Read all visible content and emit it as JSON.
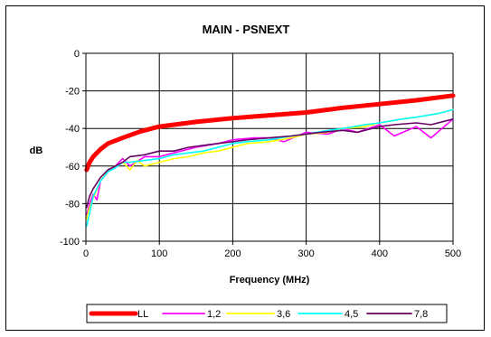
{
  "chart_data": {
    "type": "line",
    "title": "MAIN - PSNEXT",
    "xlabel": "Frequency (MHz)",
    "ylabel": "dB",
    "xlim": [
      0,
      500
    ],
    "ylim": [
      -100,
      0
    ],
    "xticks": [
      0,
      100,
      200,
      300,
      400,
      500
    ],
    "yticks": [
      0,
      -20,
      -40,
      -60,
      -80,
      -100
    ],
    "grid": "on",
    "legend_position": "bottom",
    "series": [
      {
        "name": "LL",
        "color": "#ff0000",
        "x": [
          1,
          5,
          10,
          20,
          30,
          50,
          75,
          100,
          150,
          200,
          250,
          300,
          350,
          400,
          450,
          500
        ],
        "y": [
          -62,
          -58,
          -55,
          -51,
          -48,
          -45,
          -41.5,
          -39,
          -36.5,
          -34.5,
          -33,
          -31.5,
          -29,
          -27,
          -25,
          -22.5
        ]
      },
      {
        "name": "1,2",
        "color": "#ff00ff",
        "x": [
          1,
          5,
          10,
          15,
          20,
          30,
          40,
          50,
          60,
          80,
          100,
          120,
          150,
          180,
          200,
          230,
          250,
          270,
          300,
          330,
          350,
          370,
          400,
          420,
          450,
          470,
          500
        ],
        "y": [
          -86,
          -80,
          -75,
          -78,
          -68,
          -63,
          -60,
          -56,
          -60,
          -55,
          -55,
          -53,
          -50,
          -48,
          -46,
          -45,
          -45,
          -47,
          -42,
          -43,
          -40,
          -42,
          -38,
          -44,
          -39,
          -45,
          -35
        ]
      },
      {
        "name": "3,6",
        "color": "#ffff00",
        "x": [
          1,
          5,
          10,
          20,
          30,
          40,
          50,
          60,
          70,
          80,
          100,
          120,
          140,
          160,
          180,
          200,
          220,
          250,
          280,
          300,
          330,
          350,
          380,
          400,
          430,
          450,
          480,
          500
        ],
        "y": [
          -88,
          -82,
          -77,
          -68,
          -62,
          -60,
          -58,
          -62,
          -57,
          -60,
          -58,
          -56,
          -55,
          -53,
          -52,
          -50,
          -48,
          -47,
          -45,
          -43,
          -42,
          -40,
          -39,
          -37,
          -35,
          -34,
          -32,
          -30
        ]
      },
      {
        "name": "4,5",
        "color": "#00ffff",
        "x": [
          1,
          5,
          10,
          20,
          30,
          40,
          50,
          60,
          80,
          100,
          120,
          140,
          160,
          180,
          200,
          220,
          250,
          280,
          300,
          330,
          350,
          380,
          400,
          430,
          450,
          480,
          500
        ],
        "y": [
          -92,
          -85,
          -76,
          -68,
          -63,
          -61,
          -58,
          -58,
          -57,
          -56,
          -54,
          -53,
          -52,
          -50,
          -48,
          -47,
          -46,
          -44,
          -43,
          -41,
          -40,
          -38,
          -37,
          -35,
          -34,
          -32,
          -30
        ]
      },
      {
        "name": "7,8",
        "color": "#660066",
        "x": [
          1,
          5,
          10,
          20,
          30,
          40,
          50,
          60,
          80,
          100,
          120,
          140,
          160,
          180,
          200,
          220,
          250,
          280,
          300,
          320,
          350,
          370,
          400,
          420,
          450,
          470,
          500
        ],
        "y": [
          -82,
          -76,
          -72,
          -66,
          -62,
          -60,
          -58,
          -55,
          -54,
          -52,
          -52,
          -50,
          -49,
          -48,
          -47,
          -46,
          -45,
          -44,
          -43,
          -42,
          -41,
          -42,
          -39,
          -38,
          -37,
          -38,
          -35
        ]
      }
    ]
  }
}
